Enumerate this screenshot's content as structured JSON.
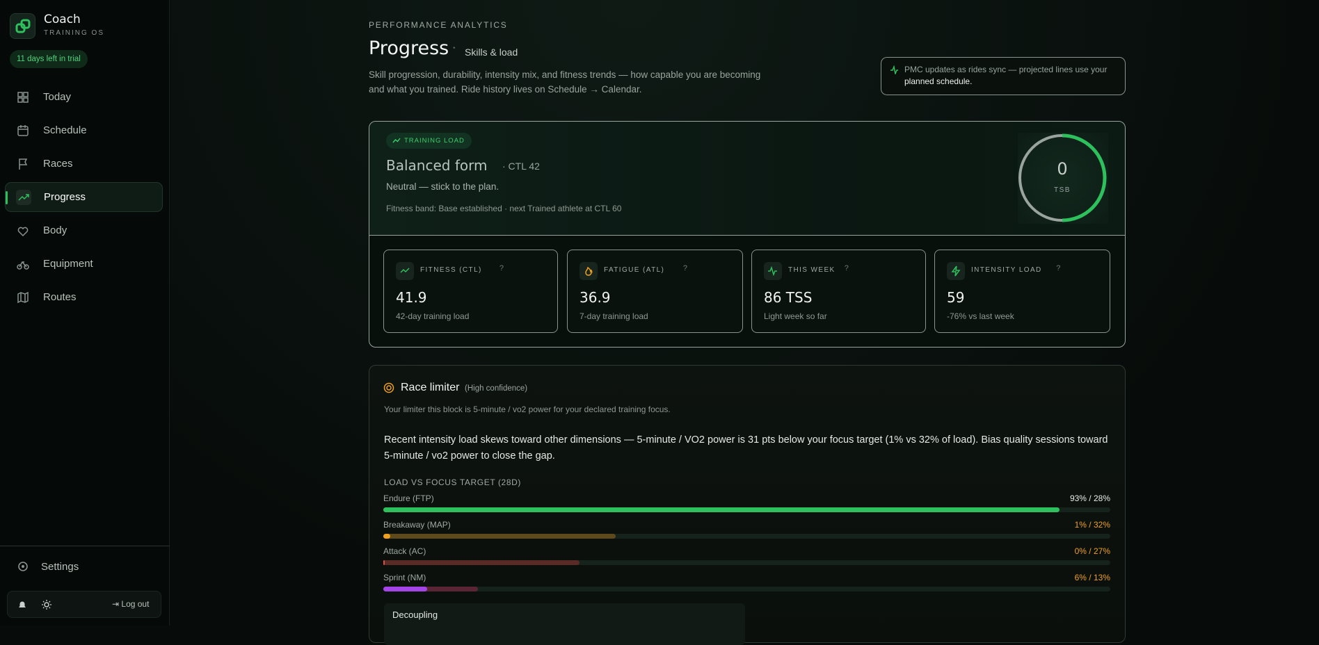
{
  "sidebar": {
    "brand": "Coach",
    "brand_sub": "TRAINING OS",
    "trial": "11 days left in trial",
    "nav": [
      "Today",
      "Schedule",
      "Races",
      "Progress",
      "Body",
      "Equipment",
      "Routes"
    ],
    "active_index": 3,
    "settings": "Settings",
    "logout": "Log out"
  },
  "header": {
    "eyebrow": "PERFORMANCE ANALYTICS",
    "title": "Progress",
    "subtitle": "Skills & load",
    "description": "Skill progression, durability, intensity mix, and fitness trends — how capable you are becoming and what you trained. Ride history lives on Schedule → Calendar.",
    "notice": "PMC updates as rides sync — projected lines use your",
    "notice_link": "planned schedule."
  },
  "training_load": {
    "badge": "TRAINING LOAD",
    "status": "Balanced form",
    "ctl": "· CTL 42",
    "advice": "Neutral — stick to the plan.",
    "band": "Fitness band: Base established · next Trained athlete at CTL 60",
    "tsb_value": "0",
    "tsb_label": "TSB"
  },
  "stats": [
    {
      "label": "FITNESS (CTL)",
      "value": "41.9",
      "note": "42-day training load"
    },
    {
      "label": "FATIGUE (ATL)",
      "value": "36.9",
      "note": "7-day training load"
    },
    {
      "label": "THIS WEEK",
      "value": "86 TSS",
      "note": "Light week so far"
    },
    {
      "label": "INTENSITY LOAD",
      "value": "59",
      "note": "-76% vs last week"
    }
  ],
  "race_limiter": {
    "title": "Race limiter",
    "confidence": "(High confidence)",
    "summary": "Your limiter this block is 5-minute / vo2 power for your declared training focus.",
    "detail": "Recent intensity load skews toward other dimensions — 5-minute / VO2 power is 31 pts below your focus target (1% vs 32% of load). Bias quality sessions toward 5-minute / vo2 power to close the gap.",
    "chart_label": "LOAD VS FOCUS TARGET (28D)",
    "bars": [
      {
        "label": "Endure (FTP)",
        "load": 93,
        "target": 28,
        "text": "93% / 28%",
        "color": "#2ec05c",
        "target_color": "#1f5a35",
        "text_color": "#e6ece8"
      },
      {
        "label": "Breakaway (MAP)",
        "load": 1,
        "target": 32,
        "text": "1% / 32%",
        "color": "#f0a020",
        "target_color": "#5c4a1c",
        "text_color": "#f0a020"
      },
      {
        "label": "Attack (AC)",
        "load": 0,
        "target": 27,
        "text": "0% / 27%",
        "color": "#e05040",
        "target_color": "#5a2a26",
        "text_color": "#f0a020"
      },
      {
        "label": "Sprint (NM)",
        "load": 6,
        "target": 13,
        "text": "6% / 13%",
        "color": "#a545e8",
        "target_color": "#5a2636",
        "text_color": "#f0a020"
      }
    ],
    "decoupling": "Decoupling"
  }
}
